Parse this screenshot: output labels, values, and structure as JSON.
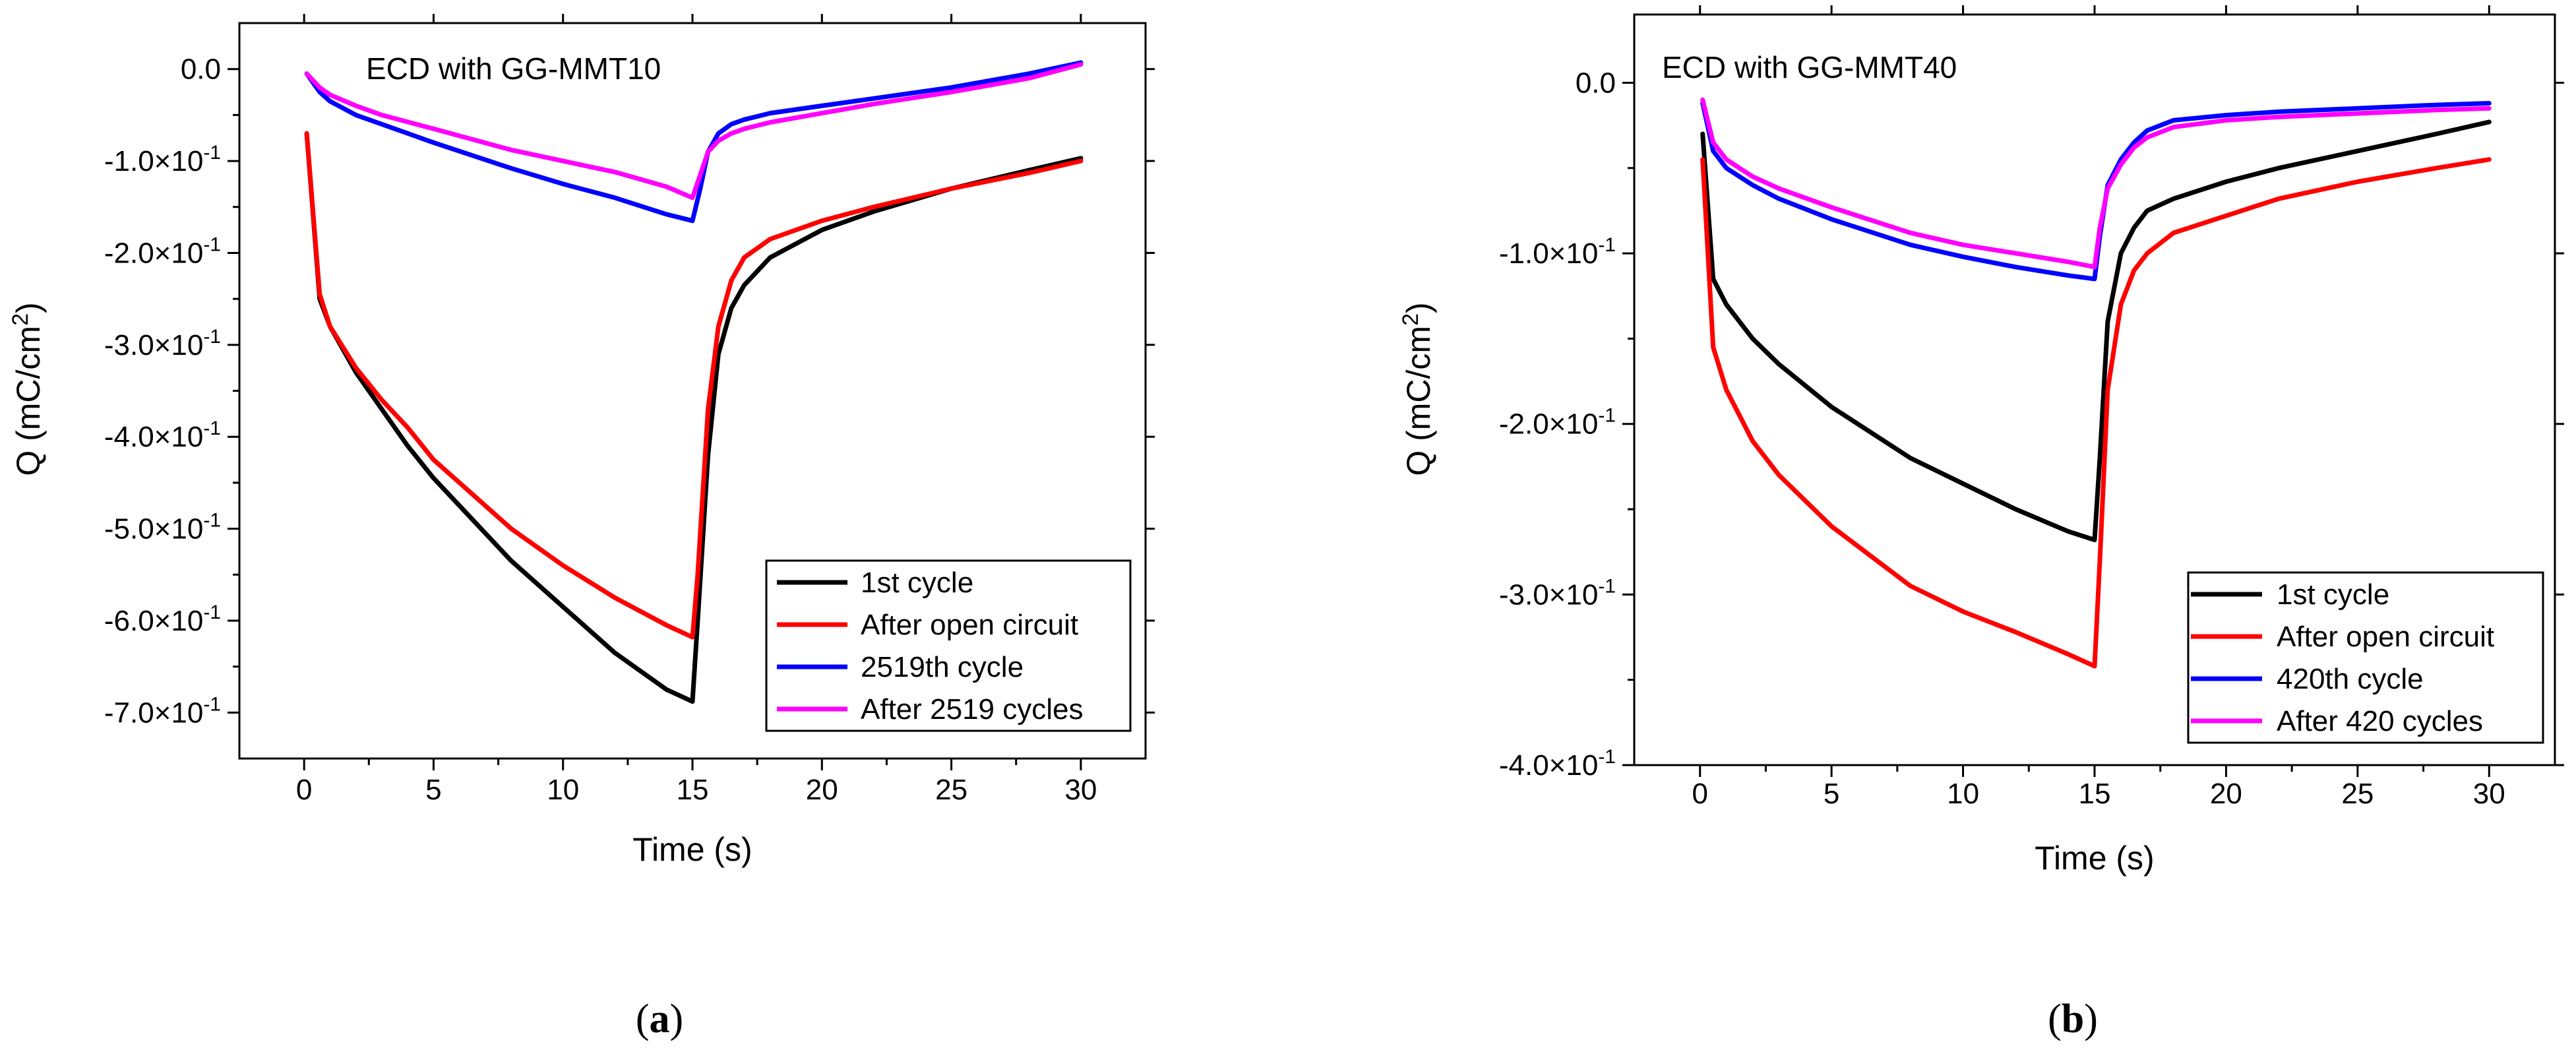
{
  "chart_data": [
    {
      "type": "line",
      "panel_label": "a",
      "annotation": "ECD with GG-MMT10",
      "xlabel": "Time (s)",
      "ylabel": "Q (mC/cm²)",
      "xlim": [
        -2.5,
        32.5
      ],
      "ylim": [
        -0.75,
        0.05
      ],
      "x_ticks": [
        0,
        5,
        10,
        15,
        20,
        25,
        30
      ],
      "x_tick_labels": [
        "0",
        "5",
        "10",
        "15",
        "20",
        "25",
        "30"
      ],
      "y_ticks": [
        0,
        -0.1,
        -0.2,
        -0.3,
        -0.4,
        -0.5,
        -0.6,
        -0.7
      ],
      "y_tick_labels": [
        {
          "m": "0.0",
          "e": ""
        },
        {
          "m": "-1.0×10",
          "e": "-1"
        },
        {
          "m": "-2.0×10",
          "e": "-1"
        },
        {
          "m": "-3.0×10",
          "e": "-1"
        },
        {
          "m": "-4.0×10",
          "e": "-1"
        },
        {
          "m": "-5.0×10",
          "e": "-1"
        },
        {
          "m": "-6.0×10",
          "e": "-1"
        },
        {
          "m": "-7.0×10",
          "e": "-1"
        }
      ],
      "legend_position": "bottom-right",
      "grid": false,
      "series": [
        {
          "name": "1st cycle",
          "color": "#000000",
          "x": [
            0.1,
            0.6,
            1,
            2,
            3,
            4,
            5,
            6,
            8,
            10,
            12,
            14,
            15,
            15.2,
            15.6,
            16,
            16.5,
            17,
            18,
            20,
            22,
            25,
            28,
            30
          ],
          "y": [
            -0.07,
            -0.25,
            -0.28,
            -0.33,
            -0.37,
            -0.41,
            -0.445,
            -0.475,
            -0.535,
            -0.585,
            -0.635,
            -0.675,
            -0.688,
            -0.6,
            -0.42,
            -0.31,
            -0.26,
            -0.235,
            -0.205,
            -0.175,
            -0.155,
            -0.13,
            -0.11,
            -0.097
          ]
        },
        {
          "name": "After open circuit",
          "color": "#ff0000",
          "x": [
            0.1,
            0.6,
            1,
            2,
            3,
            4,
            5,
            6,
            8,
            10,
            12,
            14,
            15,
            15.2,
            15.6,
            16,
            16.5,
            17,
            18,
            20,
            22,
            25,
            28,
            30
          ],
          "y": [
            -0.07,
            -0.245,
            -0.28,
            -0.325,
            -0.36,
            -0.39,
            -0.425,
            -0.45,
            -0.5,
            -0.54,
            -0.575,
            -0.605,
            -0.618,
            -0.55,
            -0.37,
            -0.28,
            -0.23,
            -0.205,
            -0.185,
            -0.165,
            -0.15,
            -0.13,
            -0.113,
            -0.1
          ]
        },
        {
          "name": "2519th cycle",
          "color": "#0000ff",
          "x": [
            0.1,
            0.6,
            1,
            2,
            3,
            5,
            8,
            10,
            12,
            14,
            15,
            15.3,
            15.6,
            16,
            16.5,
            17,
            18,
            20,
            22,
            25,
            28,
            30
          ],
          "y": [
            -0.005,
            -0.025,
            -0.035,
            -0.05,
            -0.06,
            -0.08,
            -0.108,
            -0.125,
            -0.14,
            -0.158,
            -0.165,
            -0.13,
            -0.09,
            -0.07,
            -0.06,
            -0.055,
            -0.048,
            -0.04,
            -0.032,
            -0.02,
            -0.005,
            0.007
          ]
        },
        {
          "name": "After 2519 cycles",
          "color": "#ff00ff",
          "x": [
            0.1,
            0.6,
            1,
            2,
            3,
            5,
            8,
            10,
            12,
            14,
            15,
            15.3,
            15.6,
            16,
            16.5,
            17,
            18,
            20,
            22,
            25,
            28,
            30
          ],
          "y": [
            -0.005,
            -0.02,
            -0.028,
            -0.04,
            -0.05,
            -0.065,
            -0.088,
            -0.1,
            -0.112,
            -0.128,
            -0.14,
            -0.115,
            -0.09,
            -0.078,
            -0.07,
            -0.065,
            -0.058,
            -0.048,
            -0.038,
            -0.025,
            -0.01,
            0.005
          ]
        }
      ]
    },
    {
      "type": "line",
      "panel_label": "b",
      "annotation": "ECD with GG-MMT40",
      "xlabel": "Time (s)",
      "ylabel": "Q (mC/cm²)",
      "xlim": [
        -2.5,
        32.5
      ],
      "ylim": [
        -0.4,
        0.04
      ],
      "x_ticks": [
        0,
        5,
        10,
        15,
        20,
        25,
        30
      ],
      "x_tick_labels": [
        "0",
        "5",
        "10",
        "15",
        "20",
        "25",
        "30"
      ],
      "y_ticks": [
        0,
        -0.1,
        -0.2,
        -0.3,
        -0.4
      ],
      "y_tick_labels": [
        {
          "m": "0.0",
          "e": ""
        },
        {
          "m": "-1.0×10",
          "e": "-1"
        },
        {
          "m": "-2.0×10",
          "e": "-1"
        },
        {
          "m": "-3.0×10",
          "e": "-1"
        },
        {
          "m": "-4.0×10",
          "e": "-1"
        }
      ],
      "legend_position": "bottom-right",
      "grid": false,
      "series": [
        {
          "name": "1st cycle",
          "color": "#000000",
          "x": [
            0.1,
            0.5,
            1,
            2,
            3,
            5,
            8,
            10,
            12,
            14,
            15,
            15.2,
            15.5,
            16,
            16.5,
            17,
            18,
            20,
            22,
            25,
            28,
            30
          ],
          "y": [
            -0.03,
            -0.115,
            -0.13,
            -0.15,
            -0.165,
            -0.19,
            -0.22,
            -0.235,
            -0.25,
            -0.263,
            -0.268,
            -0.22,
            -0.14,
            -0.1,
            -0.085,
            -0.075,
            -0.068,
            -0.058,
            -0.05,
            -0.04,
            -0.03,
            -0.023
          ]
        },
        {
          "name": "After open circuit",
          "color": "#ff0000",
          "x": [
            0.1,
            0.5,
            1,
            2,
            3,
            5,
            8,
            10,
            12,
            14,
            15,
            15.2,
            15.5,
            16,
            16.5,
            17,
            18,
            20,
            22,
            25,
            28,
            30
          ],
          "y": [
            -0.045,
            -0.155,
            -0.18,
            -0.21,
            -0.23,
            -0.26,
            -0.295,
            -0.31,
            -0.322,
            -0.335,
            -0.342,
            -0.28,
            -0.18,
            -0.13,
            -0.11,
            -0.1,
            -0.088,
            -0.078,
            -0.068,
            -0.058,
            -0.05,
            -0.045
          ]
        },
        {
          "name": "420th cycle",
          "color": "#0000ff",
          "x": [
            0.1,
            0.5,
            1,
            2,
            3,
            5,
            8,
            10,
            12,
            14,
            15,
            15.2,
            15.5,
            16,
            16.5,
            17,
            18,
            20,
            22,
            25,
            28,
            30
          ],
          "y": [
            -0.012,
            -0.04,
            -0.05,
            -0.06,
            -0.068,
            -0.08,
            -0.095,
            -0.102,
            -0.108,
            -0.113,
            -0.115,
            -0.09,
            -0.06,
            -0.045,
            -0.035,
            -0.028,
            -0.022,
            -0.019,
            -0.017,
            -0.015,
            -0.013,
            -0.012
          ]
        },
        {
          "name": "After 420 cycles",
          "color": "#ff00ff",
          "x": [
            0.1,
            0.5,
            1,
            2,
            3,
            5,
            8,
            10,
            12,
            14,
            15,
            15.2,
            15.5,
            16,
            16.5,
            17,
            18,
            20,
            22,
            25,
            28,
            30
          ],
          "y": [
            -0.01,
            -0.035,
            -0.045,
            -0.055,
            -0.062,
            -0.073,
            -0.088,
            -0.095,
            -0.1,
            -0.105,
            -0.108,
            -0.085,
            -0.062,
            -0.048,
            -0.038,
            -0.032,
            -0.026,
            -0.022,
            -0.02,
            -0.018,
            -0.016,
            -0.015
          ]
        }
      ]
    }
  ]
}
